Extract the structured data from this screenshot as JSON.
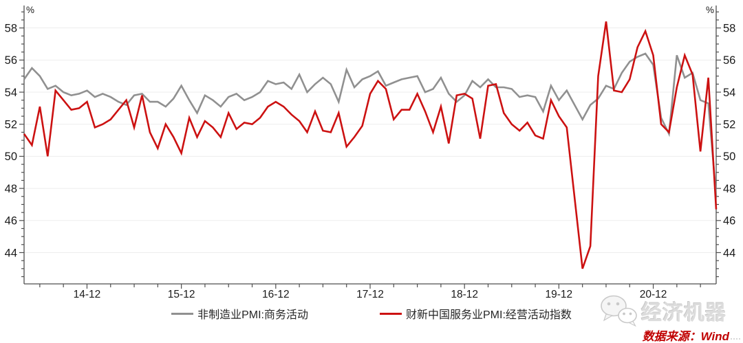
{
  "chart_data": {
    "type": "line",
    "title": "",
    "y_unit_label": "%",
    "x_frequency": "monthly",
    "x_start": "2014-04",
    "x_end": "2021-08",
    "x_tick_labels": [
      "14-12",
      "15-12",
      "16-12",
      "17-12",
      "18-12",
      "19-12",
      "20-12"
    ],
    "y_major_ticks": [
      44,
      46,
      48,
      50,
      52,
      54,
      56,
      58
    ],
    "ylim": [
      42.05,
      59.4
    ],
    "y_minor_tick_step": 0.5,
    "grid": "horizontal",
    "legend_position": "bottom",
    "note": "Feb-2020 values are omitted in the plotted lines (gap bridged Jan-2020 to Mar-2020)",
    "series": [
      {
        "name": "非制造业PMI:商务活动",
        "color": "#909090",
        "values": [
          54.8,
          55.5,
          55.0,
          54.2,
          54.4,
          54.0,
          53.8,
          53.9,
          54.1,
          53.7,
          53.9,
          53.7,
          53.4,
          53.2,
          53.8,
          53.9,
          53.4,
          53.4,
          53.1,
          53.6,
          54.4,
          53.5,
          52.7,
          53.8,
          53.5,
          53.1,
          53.7,
          53.9,
          53.5,
          53.7,
          54.0,
          54.7,
          54.5,
          54.6,
          54.2,
          55.1,
          54.0,
          54.5,
          54.9,
          54.5,
          53.4,
          55.4,
          54.3,
          54.8,
          55.0,
          55.3,
          54.4,
          54.6,
          54.8,
          54.9,
          55.0,
          54.0,
          54.2,
          54.9,
          53.9,
          53.4,
          53.8,
          54.7,
          54.3,
          54.8,
          54.3,
          54.3,
          54.2,
          53.7,
          53.8,
          53.7,
          52.8,
          54.4,
          53.5,
          54.1,
          null,
          52.3,
          53.2,
          53.6,
          54.4,
          54.2,
          55.2,
          55.9,
          56.2,
          56.4,
          55.7,
          52.4,
          51.4,
          56.3,
          54.9,
          55.2,
          53.5,
          53.3,
          47.5
        ]
      },
      {
        "name": "财新中国服务业PMI:经营活动指数",
        "color": "#cc1111",
        "values": [
          51.4,
          50.7,
          53.1,
          50.0,
          54.1,
          53.5,
          52.9,
          53.0,
          53.4,
          51.8,
          52.0,
          52.3,
          52.9,
          53.5,
          51.8,
          53.8,
          51.5,
          50.5,
          52.0,
          51.2,
          50.2,
          52.4,
          51.2,
          52.2,
          51.8,
          51.2,
          52.7,
          51.7,
          52.1,
          52.0,
          52.4,
          53.1,
          53.4,
          53.1,
          52.6,
          52.2,
          51.5,
          52.8,
          51.6,
          51.5,
          52.7,
          50.6,
          51.2,
          51.9,
          53.9,
          54.7,
          54.2,
          52.3,
          52.9,
          52.9,
          53.9,
          52.8,
          51.5,
          53.1,
          50.8,
          53.8,
          53.9,
          53.6,
          51.1,
          54.4,
          54.5,
          52.7,
          52.0,
          51.6,
          52.1,
          51.3,
          51.1,
          53.5,
          52.5,
          51.8,
          null,
          43.0,
          44.4,
          55.0,
          58.4,
          54.1,
          54.0,
          54.8,
          56.8,
          57.8,
          56.3,
          52.0,
          51.5,
          54.3,
          56.3,
          55.1,
          50.3,
          54.9,
          46.7
        ]
      }
    ]
  },
  "watermark": {
    "text": "经济机器",
    "icon": "wechat-icon"
  },
  "source": {
    "text": "数据来源：Wind"
  }
}
